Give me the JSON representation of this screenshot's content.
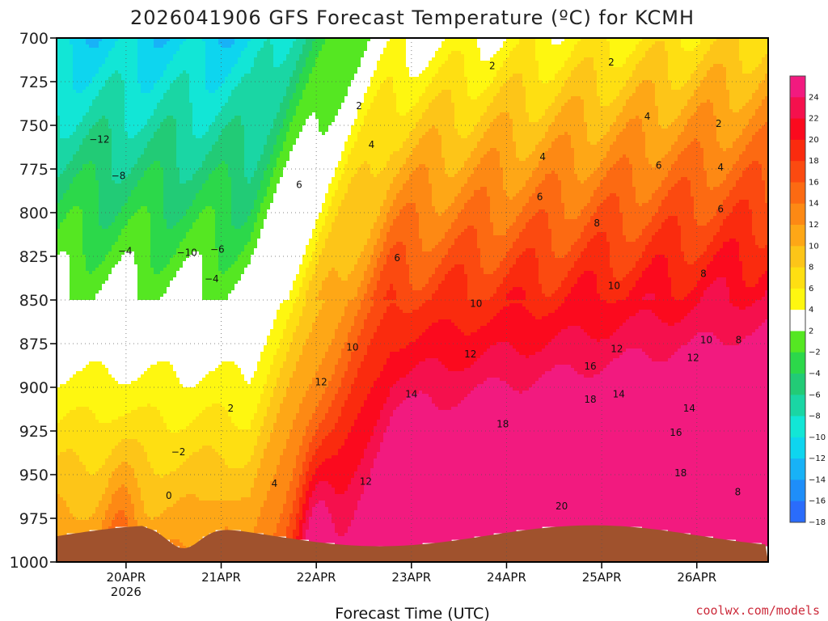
{
  "chart_data": {
    "type": "heatmap",
    "title": "2026041906 GFS Forecast Temperature (ºC) for KCMH",
    "xlabel": "Forecast Time (UTC)",
    "ylabel": "",
    "credit": "coolwx.com/models",
    "y_ticks": [
      "700",
      "725",
      "750",
      "775",
      "800",
      "825",
      "850",
      "875",
      "900",
      "925",
      "950",
      "975",
      "1000"
    ],
    "y_values": [
      700,
      725,
      750,
      775,
      800,
      825,
      850,
      875,
      900,
      925,
      950,
      975,
      1000
    ],
    "x_ticks": [
      "20APR",
      "21APR",
      "22APR",
      "23APR",
      "24APR",
      "25APR",
      "26APR"
    ],
    "x_sublabel": "2026",
    "colorbar": {
      "ticks": [
        "24",
        "22",
        "20",
        "18",
        "16",
        "14",
        "12",
        "10",
        "8",
        "6",
        "4",
        "2",
        "−2",
        "−4",
        "−6",
        "−8",
        "−10",
        "−12",
        "−14",
        "−16",
        "−18"
      ],
      "colors": [
        "#f21a7f",
        "#f5104d",
        "#fb0a1e",
        "#fa2b0e",
        "#fb4a10",
        "#fc6a12",
        "#fd8914",
        "#fea716",
        "#fdc518",
        "#fedf12",
        "#fef710",
        "#ffffff",
        "#55e722",
        "#2cd84a",
        "#22cb76",
        "#1ad6a4",
        "#12e6d6",
        "#0ed5ef",
        "#18b2f7",
        "#1e8ef9",
        "#2a6cfb"
      ]
    },
    "contour_labels": [
      {
        "text": "−12",
        "x": 19.72,
        "p": 758
      },
      {
        "text": "−8",
        "x": 19.92,
        "p": 779
      },
      {
        "text": "−4",
        "x": 19.99,
        "p": 822
      },
      {
        "text": "−10",
        "x": 20.64,
        "p": 823
      },
      {
        "text": "−6",
        "x": 20.96,
        "p": 821
      },
      {
        "text": "−4",
        "x": 20.9,
        "p": 838
      },
      {
        "text": "−2",
        "x": 20.55,
        "p": 937
      },
      {
        "text": "0",
        "x": 20.45,
        "p": 962
      },
      {
        "text": "2",
        "x": 21.1,
        "p": 912
      },
      {
        "text": "4",
        "x": 21.56,
        "p": 955
      },
      {
        "text": "2",
        "x": 22.45,
        "p": 739
      },
      {
        "text": "4",
        "x": 22.58,
        "p": 761
      },
      {
        "text": "6",
        "x": 21.82,
        "p": 784
      },
      {
        "text": "6",
        "x": 22.85,
        "p": 826
      },
      {
        "text": "10",
        "x": 22.38,
        "p": 877
      },
      {
        "text": "12",
        "x": 22.05,
        "p": 897
      },
      {
        "text": "14",
        "x": 23.0,
        "p": 904
      },
      {
        "text": "12",
        "x": 22.52,
        "p": 954
      },
      {
        "text": "10",
        "x": 23.68,
        "p": 852
      },
      {
        "text": "12",
        "x": 23.62,
        "p": 881
      },
      {
        "text": "18",
        "x": 23.96,
        "p": 921
      },
      {
        "text": "2",
        "x": 23.85,
        "p": 716
      },
      {
        "text": "4",
        "x": 24.38,
        "p": 768
      },
      {
        "text": "6",
        "x": 24.35,
        "p": 791
      },
      {
        "text": "8",
        "x": 24.95,
        "p": 806
      },
      {
        "text": "10",
        "x": 25.13,
        "p": 842
      },
      {
        "text": "12",
        "x": 25.16,
        "p": 878
      },
      {
        "text": "16",
        "x": 24.88,
        "p": 888
      },
      {
        "text": "14",
        "x": 25.18,
        "p": 904
      },
      {
        "text": "18",
        "x": 24.88,
        "p": 907
      },
      {
        "text": "20",
        "x": 24.58,
        "p": 968
      },
      {
        "text": "2",
        "x": 25.1,
        "p": 714
      },
      {
        "text": "4",
        "x": 25.48,
        "p": 745
      },
      {
        "text": "6",
        "x": 25.6,
        "p": 773
      },
      {
        "text": "8",
        "x": 26.07,
        "p": 835
      },
      {
        "text": "10",
        "x": 26.1,
        "p": 873
      },
      {
        "text": "12",
        "x": 25.96,
        "p": 883
      },
      {
        "text": "14",
        "x": 25.92,
        "p": 912
      },
      {
        "text": "16",
        "x": 25.78,
        "p": 926
      },
      {
        "text": "18",
        "x": 25.83,
        "p": 949
      },
      {
        "text": "2",
        "x": 26.23,
        "p": 749
      },
      {
        "text": "4",
        "x": 26.25,
        "p": 774
      },
      {
        "text": "6",
        "x": 26.25,
        "p": 798
      },
      {
        "text": "8",
        "x": 26.44,
        "p": 873
      },
      {
        "text": "8",
        "x": 26.43,
        "p": 960
      }
    ]
  }
}
